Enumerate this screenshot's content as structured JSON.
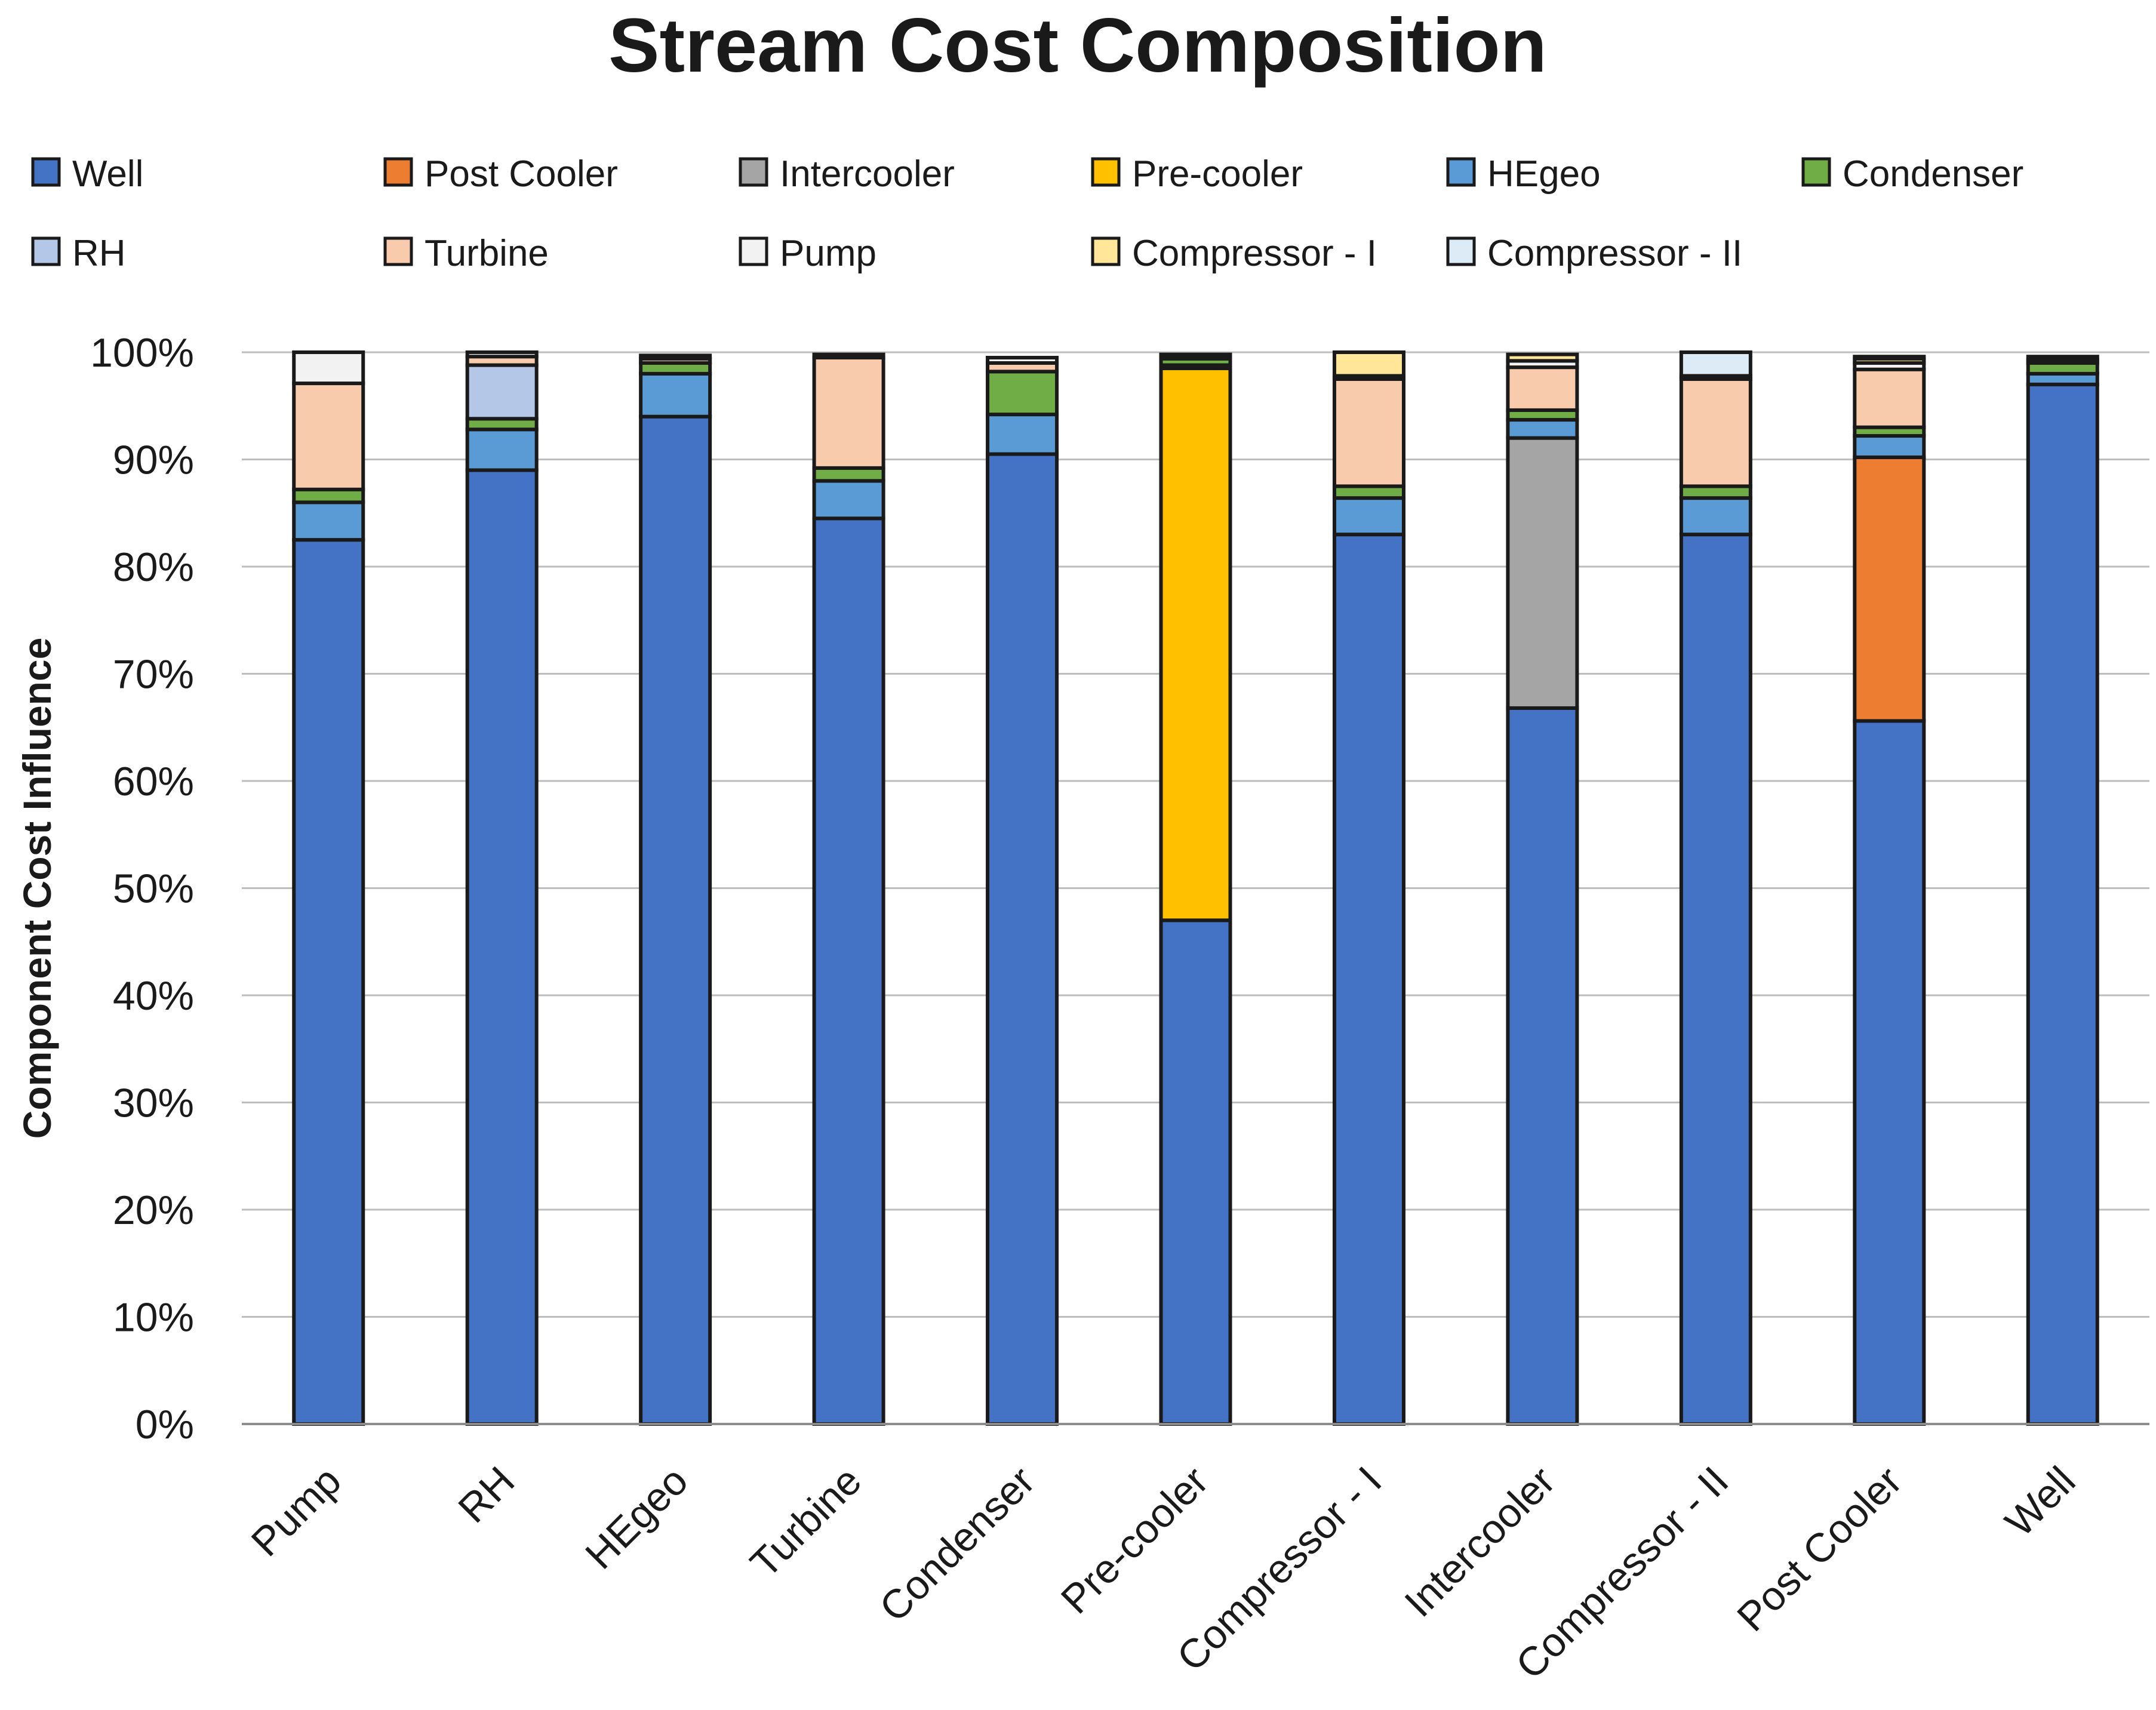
{
  "chart_data": {
    "type": "bar",
    "stacked": true,
    "title": "Stream Cost Composition",
    "xlabel": "",
    "ylabel": "Component Cost Influence",
    "ylim": [
      0,
      100
    ],
    "y_ticks": [
      "0%",
      "10%",
      "20%",
      "30%",
      "40%",
      "50%",
      "60%",
      "70%",
      "80%",
      "90%",
      "100%"
    ],
    "y_tick_values": [
      0,
      10,
      20,
      30,
      40,
      50,
      60,
      70,
      80,
      90,
      100
    ],
    "grid": true,
    "legend_position": "top",
    "categories": [
      "Pump",
      "RH",
      "HEgeo",
      "Turbine",
      "Condenser",
      "Pre-cooler",
      "Compressor - I",
      "Intercooler",
      "Compressor - II",
      "Post Cooler",
      "Well"
    ],
    "series": [
      {
        "name": "Well",
        "color": "#4472C4",
        "values": [
          82.5,
          89.0,
          94.0,
          84.5,
          90.5,
          47.0,
          83.0,
          66.8,
          83.0,
          65.6,
          97.0
        ]
      },
      {
        "name": "Post Cooler",
        "color": "#ED7D31",
        "values": [
          0,
          0,
          0,
          0,
          0,
          0,
          0,
          0,
          0,
          24.6,
          0
        ]
      },
      {
        "name": "Intercooler",
        "color": "#A5A5A5",
        "values": [
          0,
          0,
          0,
          0,
          0,
          0,
          0,
          25.2,
          0,
          0,
          0
        ]
      },
      {
        "name": "Pre-cooler",
        "color": "#FFC000",
        "values": [
          0,
          0,
          0,
          0,
          0,
          51.5,
          0,
          0,
          0,
          0,
          0
        ]
      },
      {
        "name": "HEgeo",
        "color": "#5B9BD5",
        "values": [
          3.5,
          3.8,
          4.0,
          3.5,
          3.7,
          0.3,
          3.4,
          1.7,
          3.4,
          2.0,
          1.0
        ]
      },
      {
        "name": "Condenser",
        "color": "#70AD47",
        "values": [
          1.2,
          1.0,
          1.0,
          1.2,
          4.0,
          0.6,
          1.1,
          0.9,
          1.1,
          0.8,
          1.0
        ]
      },
      {
        "name": "RH",
        "color": "#B4C7E7",
        "values": [
          0,
          5.0,
          0,
          0,
          0,
          0,
          0,
          0,
          0,
          0,
          0
        ]
      },
      {
        "name": "Turbine",
        "color": "#F8CBAD",
        "values": [
          9.9,
          0.8,
          0.4,
          10.3,
          0.8,
          0.2,
          10.0,
          4.0,
          10.0,
          5.4,
          0.3
        ]
      },
      {
        "name": "Pump",
        "color": "#F2F2F2",
        "values": [
          2.9,
          0.4,
          0.3,
          0.3,
          0.5,
          0.2,
          0.3,
          0.6,
          0.3,
          0.6,
          0.3
        ]
      },
      {
        "name": "Compressor - I",
        "color": "#FFE699",
        "values": [
          0,
          0,
          0,
          0,
          0,
          0,
          2.2,
          0.6,
          0,
          0.4,
          0
        ]
      },
      {
        "name": "Compressor - II",
        "color": "#DDEBF7",
        "values": [
          0,
          0,
          0,
          0,
          0,
          0,
          0,
          0,
          2.2,
          0.2,
          0
        ]
      }
    ]
  }
}
